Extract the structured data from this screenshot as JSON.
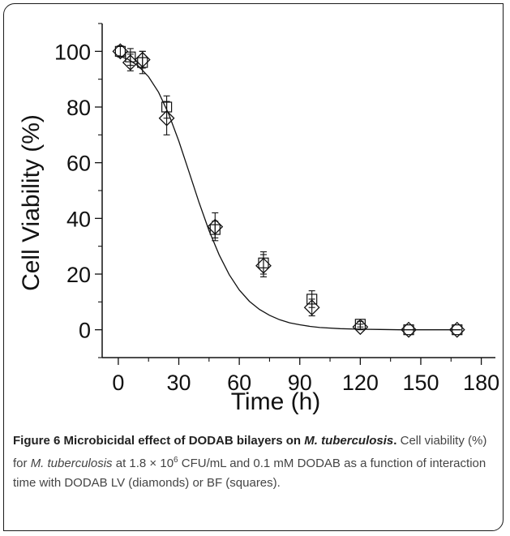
{
  "chart_data": {
    "type": "scatter",
    "title": "",
    "xlabel": "Time (h)",
    "ylabel": "Cell Viability (%)",
    "xlim": [
      -8,
      187
    ],
    "ylim": [
      -10,
      110
    ],
    "x_ticks": [
      0,
      30,
      60,
      90,
      120,
      150,
      180
    ],
    "y_ticks": [
      0,
      20,
      40,
      60,
      80,
      100
    ],
    "x_tick_labels": [
      "0",
      "30",
      "60",
      "90",
      "120",
      "150",
      "180"
    ],
    "y_tick_labels": [
      "0",
      "20",
      "40",
      "60",
      "80",
      "100"
    ],
    "grid": false,
    "legend": "none",
    "series": [
      {
        "marker": "diamond",
        "x": [
          1,
          6,
          12,
          24,
          48,
          72,
          96,
          120,
          144,
          168
        ],
        "y": [
          100,
          96,
          97,
          76,
          37,
          23,
          8,
          1,
          0,
          0
        ],
        "error": [
          2,
          3,
          3,
          6,
          5,
          4,
          3,
          1,
          0,
          0
        ]
      },
      {
        "marker": "square",
        "x": [
          1,
          6,
          12,
          24,
          48,
          72,
          96,
          120,
          144,
          168
        ],
        "y": [
          100,
          98,
          96,
          80,
          36,
          24,
          11,
          2,
          0,
          0
        ],
        "error": [
          0,
          3,
          4,
          4,
          3,
          4,
          3,
          1,
          0,
          0
        ]
      }
    ],
    "fit_curve": {
      "type": "sigmoid",
      "x": [
        0,
        5,
        10,
        15,
        20,
        25,
        30,
        35,
        40,
        45,
        50,
        55,
        60,
        65,
        70,
        75,
        80,
        85,
        90,
        95,
        100,
        110,
        120,
        130,
        140,
        150,
        160,
        170
      ],
      "y": [
        98.5,
        97.1,
        94.7,
        90.9,
        85.3,
        77.5,
        67.8,
        56.9,
        45.8,
        35.6,
        26.9,
        19.8,
        14.3,
        10.2,
        7.3,
        5.2,
        3.6,
        2.5,
        1.8,
        1.2,
        0.8,
        0.4,
        0.2,
        0.1,
        0.0,
        0.0,
        0.0,
        0.0
      ]
    }
  },
  "caption": {
    "figure_label": "Figure 6",
    "title_pre": "Microbicidal effect of DODAB bilayers on ",
    "title_italic": "M. tuberculosis",
    "title_post": ".",
    "text_1": "Cell viability (%) for ",
    "text_italic": "M. tuberculosis",
    "text_2": " at 1.8 × 10",
    "text_sup": "6",
    "text_3": " CFU/mL and 0.1 mM DODAB as a function of interaction time with DODAB LV (diamonds) or BF (squares)."
  }
}
